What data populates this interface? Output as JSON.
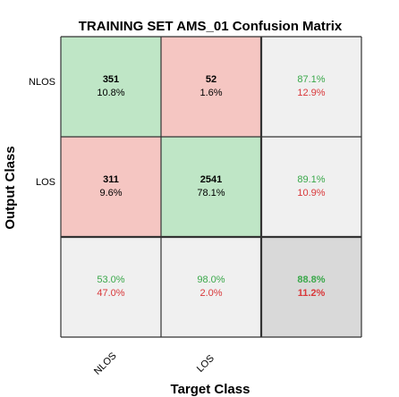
{
  "chart_data": {
    "type": "heatmap",
    "title": "TRAINING SET AMS_01 Confusion Matrix",
    "xlabel": "Target Class",
    "ylabel": "Output Class",
    "x_categories": [
      "NLOS",
      "LOS"
    ],
    "y_categories": [
      "NLOS",
      "LOS"
    ],
    "cells": [
      [
        {
          "count": "351",
          "percent": "10.8%",
          "kind": "correct"
        },
        {
          "count": "52",
          "percent": "1.6%",
          "kind": "error"
        }
      ],
      [
        {
          "count": "311",
          "percent": "9.6%",
          "kind": "error"
        },
        {
          "count": "2541",
          "percent": "78.1%",
          "kind": "correct"
        }
      ]
    ],
    "row_summary": [
      {
        "correct": "87.1%",
        "wrong": "12.9%"
      },
      {
        "correct": "89.1%",
        "wrong": "10.9%"
      }
    ],
    "col_summary": [
      {
        "correct": "53.0%",
        "wrong": "47.0%"
      },
      {
        "correct": "98.0%",
        "wrong": "2.0%"
      }
    ],
    "overall": {
      "correct": "88.8%",
      "wrong": "11.2%"
    },
    "colors": {
      "correct_fill": "#bfe6c6",
      "error_fill": "#f5c6c2",
      "summary_fill": "#f0f0f0",
      "overall_fill": "#d9d9d9",
      "good_text": "#3aa84a",
      "bad_text": "#d9383a",
      "grid": "#333333"
    }
  }
}
